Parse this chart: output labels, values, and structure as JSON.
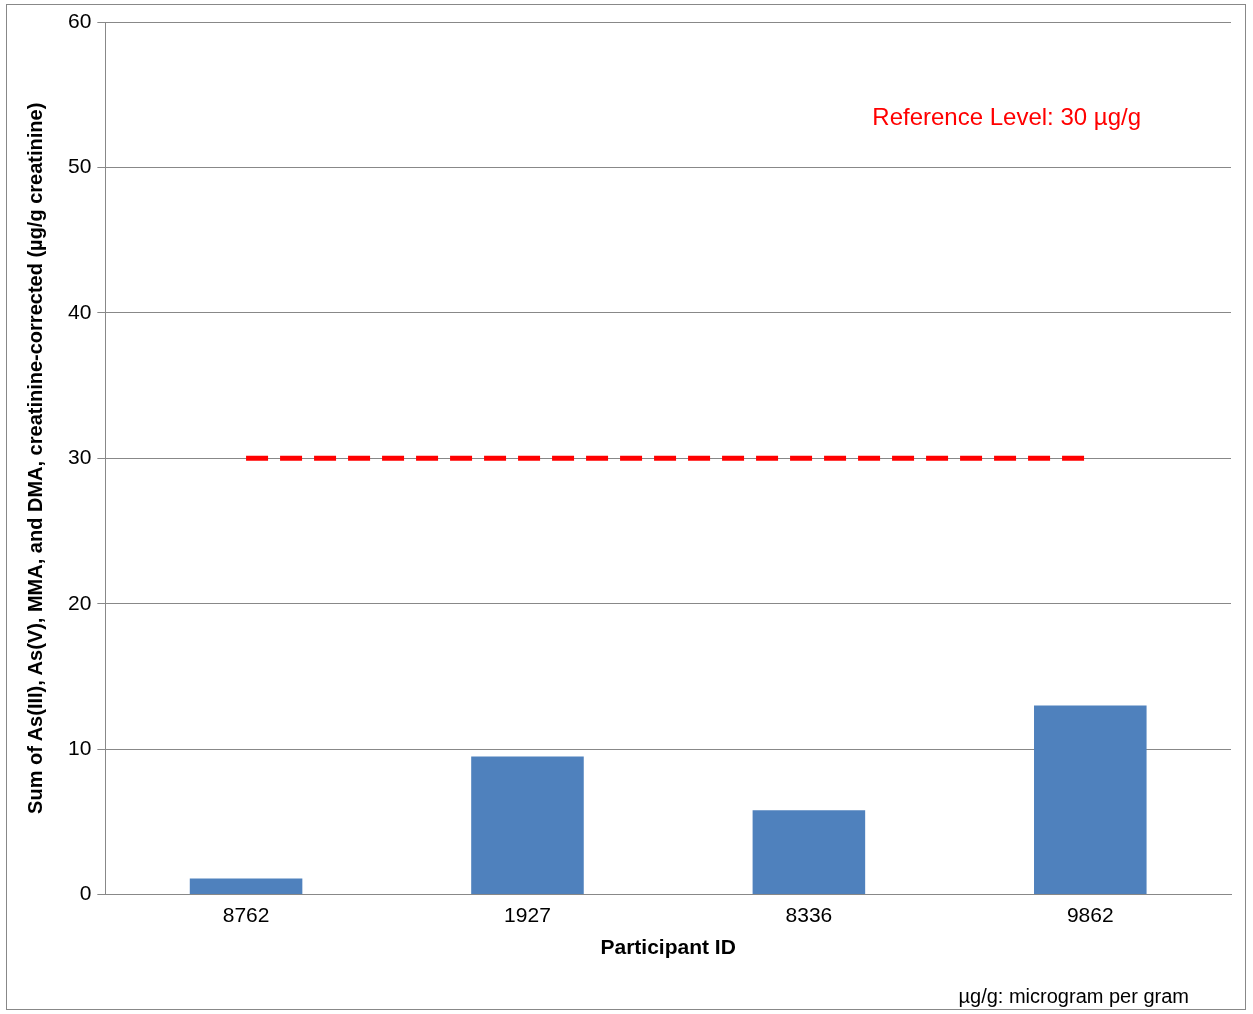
{
  "chart_data": {
    "type": "bar",
    "categories": [
      "8762",
      "1927",
      "8336",
      "9862"
    ],
    "values": [
      1.1,
      9.5,
      5.8,
      13
    ],
    "color": "#4f81bd",
    "xlabel": "Participant ID",
    "ylabel": "Sum of As(III), As(V), MMA, and DMA, creatinine-corrected (µg/g creatinine)",
    "ylim": [
      0,
      60
    ],
    "yticks": [
      0,
      10,
      20,
      30,
      40,
      50,
      60
    ],
    "grid": "y",
    "legend": false,
    "ref_lines": [
      {
        "axis": "y",
        "value": 30,
        "label": "Reference Level: 30 µg/g",
        "color": "#ff0000",
        "line_style": "dashed"
      }
    ],
    "annotations": [
      "µg/g: microgram per gram"
    ]
  }
}
